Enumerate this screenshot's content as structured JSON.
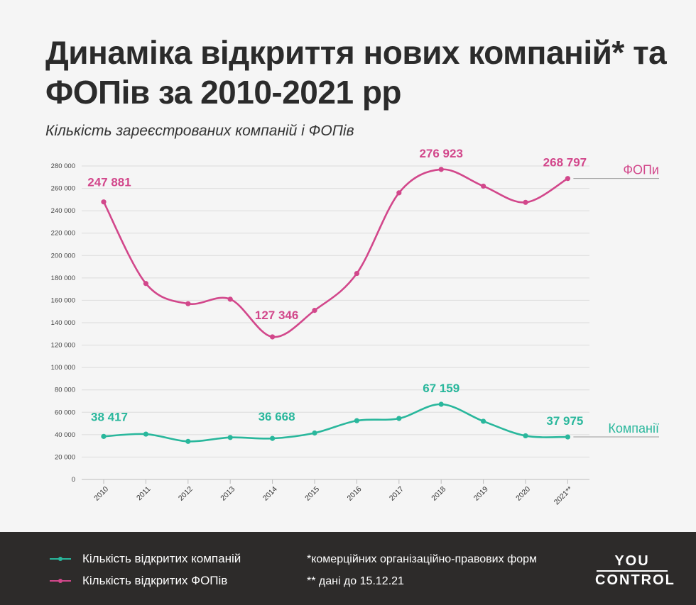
{
  "header": {
    "title": "Динаміка відкриття нових компаній* та ФОПів за 2010-2021 рр",
    "subtitle": "Кількість зареєстрованих компаній і ФОПів"
  },
  "chart_data": {
    "type": "line",
    "categories": [
      "2010",
      "2011",
      "2012",
      "2013",
      "2014",
      "2015",
      "2016",
      "2017",
      "2018",
      "2019",
      "2020",
      "2021**"
    ],
    "ylim": [
      0,
      280000
    ],
    "yticks": [
      0,
      20000,
      40000,
      60000,
      80000,
      100000,
      120000,
      140000,
      160000,
      180000,
      200000,
      220000,
      240000,
      260000,
      280000
    ],
    "ytick_labels": [
      "0",
      "20 000",
      "40 000",
      "60 000",
      "80 000",
      "100 000",
      "120 000",
      "140 000",
      "160 000",
      "180 000",
      "200 000",
      "220 000",
      "240 000",
      "260 000",
      "280 000"
    ],
    "grid": true,
    "series": [
      {
        "name": "ФОПи",
        "color": "#d2478b",
        "values": [
          247881,
          175000,
          157000,
          161000,
          127346,
          151000,
          184000,
          256000,
          276923,
          262000,
          247500,
          268797
        ],
        "data_labels": [
          {
            "index": 0,
            "text": "247 881"
          },
          {
            "index": 4,
            "text": "127 346"
          },
          {
            "index": 8,
            "text": "276 923"
          },
          {
            "index": 11,
            "text": "268 797"
          }
        ]
      },
      {
        "name": "Компанії",
        "color": "#29b79c",
        "values": [
          38417,
          40500,
          34000,
          37500,
          36668,
          41500,
          52500,
          54500,
          67159,
          52000,
          39000,
          37975
        ],
        "data_labels": [
          {
            "index": 0,
            "text": "38 417"
          },
          {
            "index": 4,
            "text": "36 668"
          },
          {
            "index": 8,
            "text": "67 159"
          },
          {
            "index": 11,
            "text": "37 975"
          }
        ]
      }
    ]
  },
  "footer": {
    "legend": [
      {
        "label": "Кількість відкритих компаній",
        "color": "#29b79c"
      },
      {
        "label": "Кількість відкритих ФОПів",
        "color": "#d2478b"
      }
    ],
    "notes": [
      "*комерційних організаційно-правових форм",
      "** дані до 15.12.21"
    ],
    "logo": {
      "top": "YOU",
      "bottom": "CONTROL"
    }
  }
}
